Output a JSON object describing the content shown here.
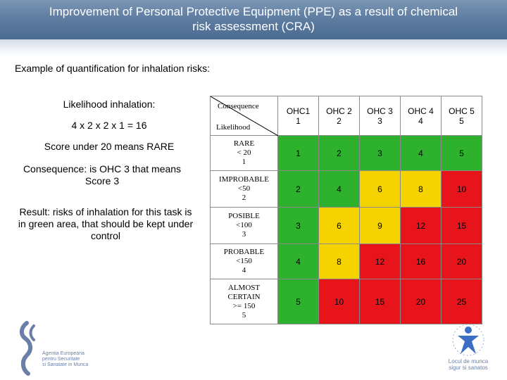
{
  "title": {
    "line1": "Improvement of Personal Protective Equipment (PPE)  as a result of chemical",
    "line2": "risk assessment (CRA)"
  },
  "subtitle": "Example of quantification for inhalation risks:",
  "left_notes": {
    "likelihood_label": "Likelihood inhalation:",
    "calculation": "4 x 2 x 2 x 1 = 16",
    "score_note": "Score under 20 means RARE",
    "consequence_note": "Consequence: is OHC 3 that means Score 3",
    "result_note": "Result: risks of inhalation for this task is in green area, that should be kept under control"
  },
  "matrix": {
    "corner_top": "Consequence",
    "corner_bottom": "Likelihood",
    "columns": [
      {
        "name": "OHC1",
        "score": "1"
      },
      {
        "name": "OHC 2",
        "score": "2"
      },
      {
        "name": "OHC 3",
        "score": "3"
      },
      {
        "name": "OHC 4",
        "score": "4"
      },
      {
        "name": "OHC 5",
        "score": "5"
      }
    ],
    "rows": [
      {
        "l1": "RARE",
        "l2": "< 20",
        "l3": "1",
        "cells": [
          "1",
          "2",
          "3",
          "4",
          "5"
        ]
      },
      {
        "l1": "IMPROBABLE",
        "l2": "<50",
        "l3": "2",
        "cells": [
          "2",
          "4",
          "6",
          "8",
          "10"
        ]
      },
      {
        "l1": "POSIBLE",
        "l2": "<100",
        "l3": "3",
        "cells": [
          "3",
          "6",
          "9",
          "12",
          "15"
        ]
      },
      {
        "l1": "PROBABLE",
        "l2": "<150",
        "l3": "4",
        "cells": [
          "4",
          "8",
          "12",
          "16",
          "20"
        ]
      },
      {
        "l1": "ALMOST",
        "l2": "CERTAIN",
        "l2b": ">= 150",
        "l3": "5",
        "cells": [
          "5",
          "10",
          "15",
          "20",
          "25"
        ]
      }
    ],
    "colors": {
      "green": "#2eb22e",
      "yellow": "#f5d300",
      "red": "#e8141b"
    }
  },
  "logos": {
    "left_text": [
      "Agentia Europeana",
      "pentru Securitate",
      "si Sanatate in Munca"
    ],
    "right_text": [
      "Locul de munca",
      "sigur si sanatos"
    ]
  }
}
